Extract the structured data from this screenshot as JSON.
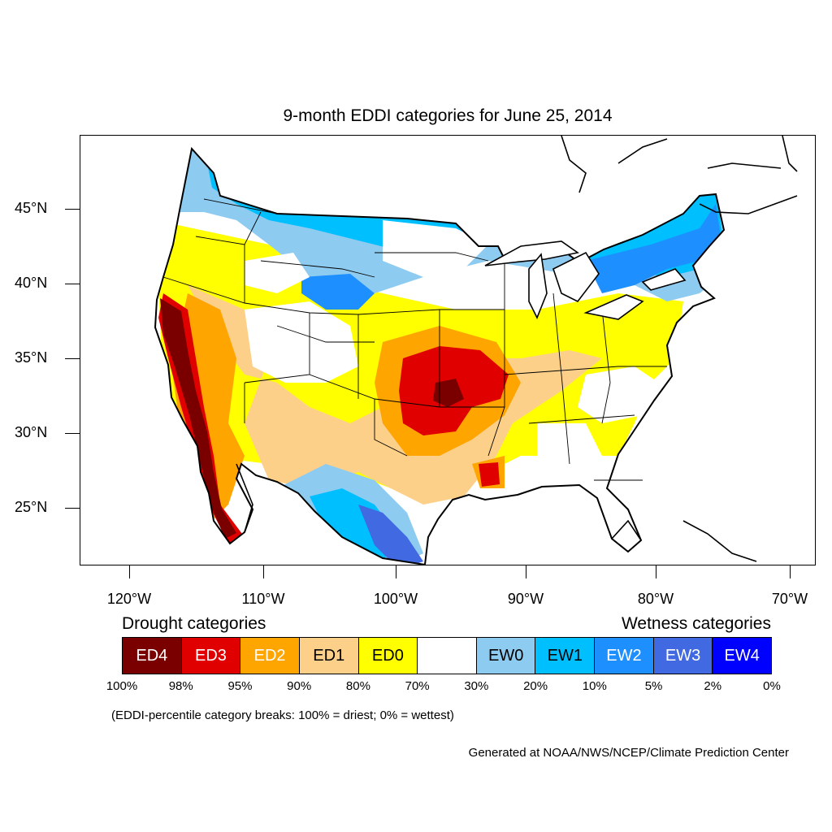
{
  "title": "9-month EDDI categories for June 25, 2014",
  "map": {
    "lat_labels": [
      "45°N",
      "40°N",
      "35°N",
      "30°N",
      "25°N"
    ],
    "lon_labels": [
      "120°W",
      "110°W",
      "100°W",
      "90°W",
      "80°W",
      "70°W"
    ]
  },
  "legend": {
    "drought_heading": "Drought categories",
    "wetness_heading": "Wetness categories",
    "categories": [
      {
        "label": "ED4",
        "color": "#7a0000",
        "text_color": "#ffffff"
      },
      {
        "label": "ED3",
        "color": "#e00000",
        "text_color": "#ffffff"
      },
      {
        "label": "ED2",
        "color": "#ffa500",
        "text_color": "#ffffff"
      },
      {
        "label": "ED1",
        "color": "#fdd08a",
        "text_color": "#000000"
      },
      {
        "label": "ED0",
        "color": "#ffff00",
        "text_color": "#000000"
      },
      {
        "label": "",
        "color": "#ffffff",
        "text_color": "#000000"
      },
      {
        "label": "EW0",
        "color": "#8ecbf0",
        "text_color": "#000000"
      },
      {
        "label": "EW1",
        "color": "#00bfff",
        "text_color": "#000000"
      },
      {
        "label": "EW2",
        "color": "#1e8fff",
        "text_color": "#ffffff"
      },
      {
        "label": "EW3",
        "color": "#4169e1",
        "text_color": "#ffffff"
      },
      {
        "label": "EW4",
        "color": "#0000ff",
        "text_color": "#ffffff"
      }
    ],
    "percentiles": [
      "100%",
      "98%",
      "95%",
      "90%",
      "80%",
      "70%",
      "30%",
      "20%",
      "10%",
      "5%",
      "2%",
      "0%"
    ]
  },
  "note": "(EDDI-percentile category breaks: 100% = driest; 0% = wettest)",
  "credit": "Generated at NOAA/NWS/NCEP/Climate Prediction Center"
}
